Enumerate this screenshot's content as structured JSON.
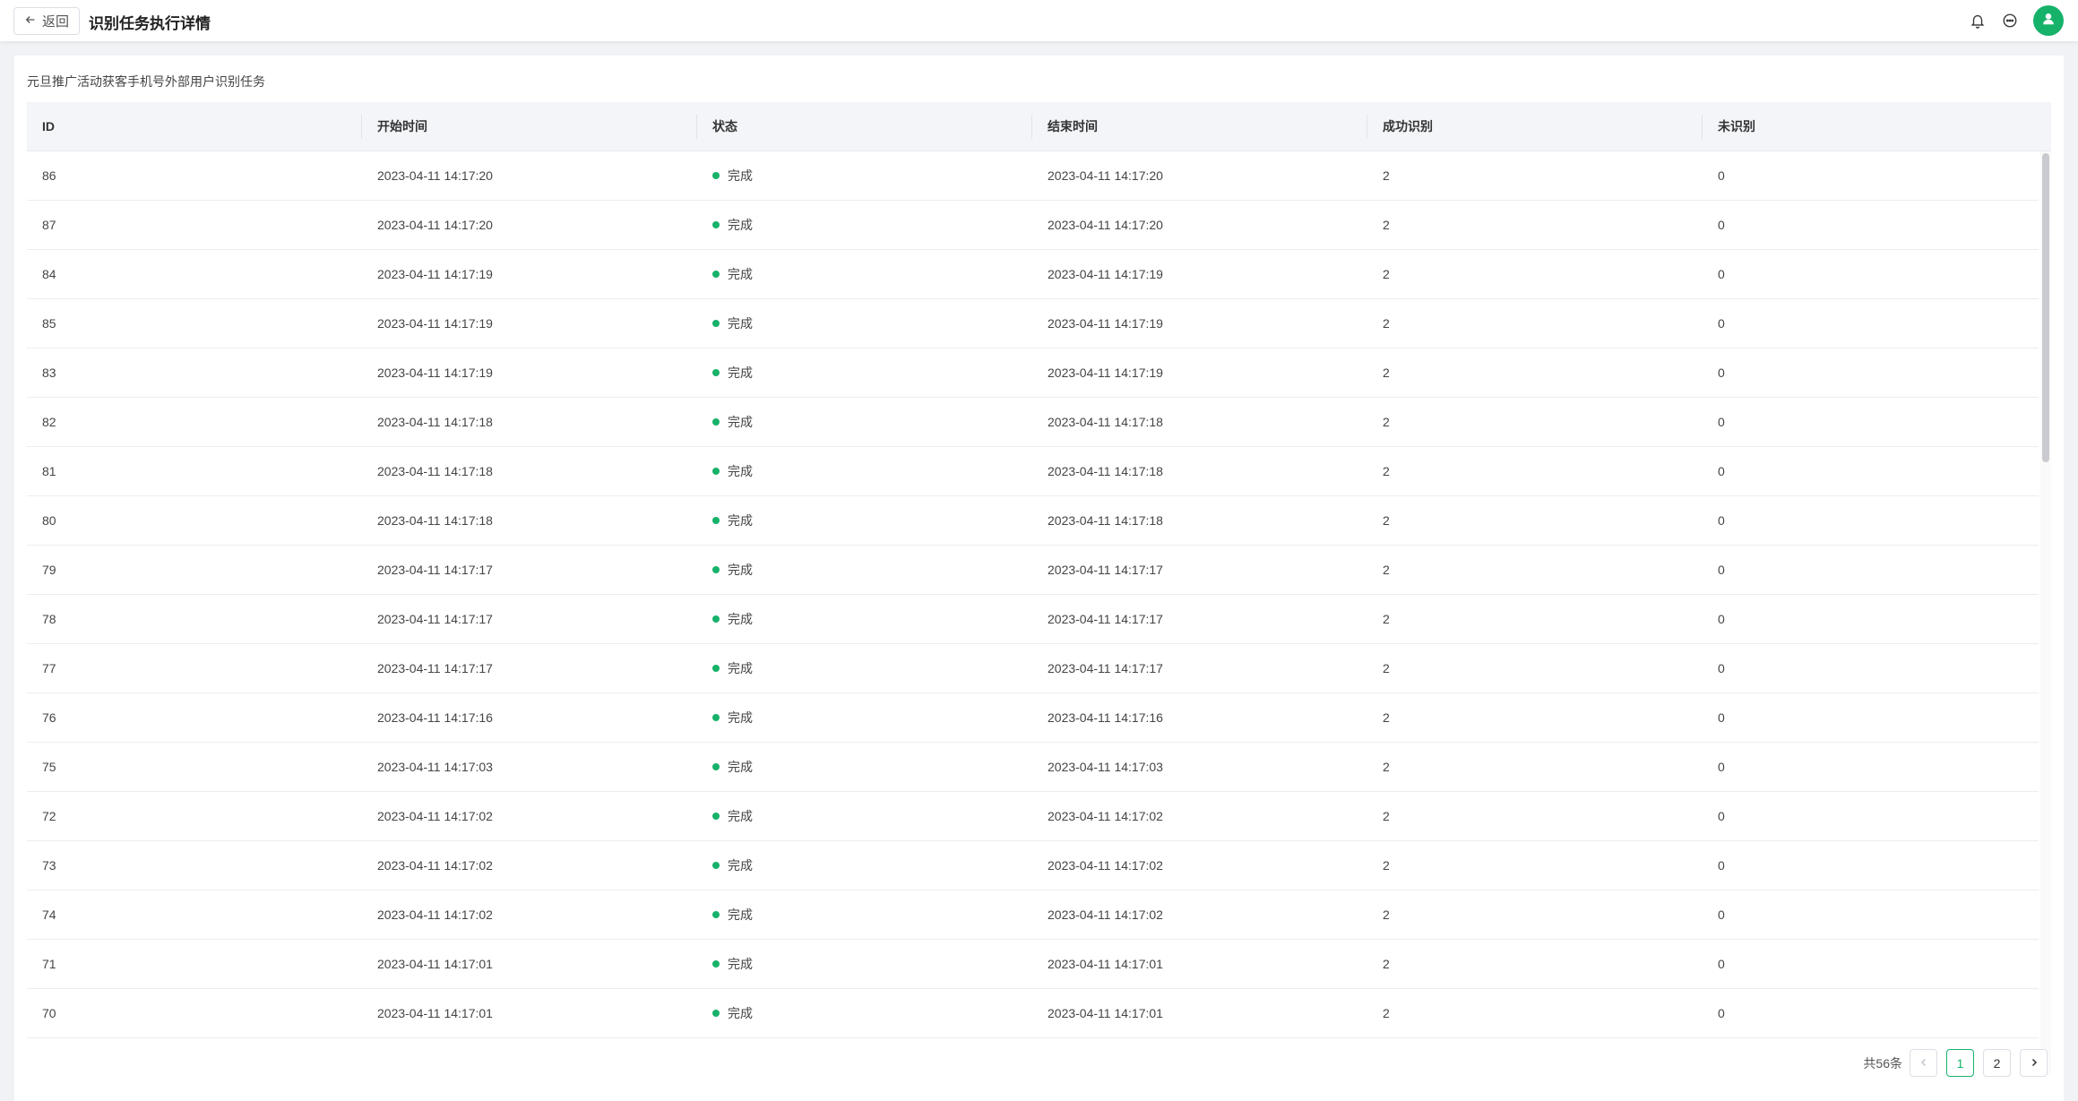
{
  "header": {
    "back_label": "返回",
    "title": "识别任务执行详情"
  },
  "colors": {
    "accent": "#17b26a",
    "status_done": "#17b26a"
  },
  "task": {
    "name": "元旦推广活动获客手机号外部用户识别任务"
  },
  "table": {
    "columns": [
      "ID",
      "开始时间",
      "状态",
      "结束时间",
      "成功识别",
      "未识别"
    ],
    "rows": [
      {
        "id": "86",
        "start": "2023-04-11 14:17:20",
        "status": "完成",
        "end": "2023-04-11 14:17:20",
        "success": "2",
        "unrecognized": "0"
      },
      {
        "id": "87",
        "start": "2023-04-11 14:17:20",
        "status": "完成",
        "end": "2023-04-11 14:17:20",
        "success": "2",
        "unrecognized": "0"
      },
      {
        "id": "84",
        "start": "2023-04-11 14:17:19",
        "status": "完成",
        "end": "2023-04-11 14:17:19",
        "success": "2",
        "unrecognized": "0"
      },
      {
        "id": "85",
        "start": "2023-04-11 14:17:19",
        "status": "完成",
        "end": "2023-04-11 14:17:19",
        "success": "2",
        "unrecognized": "0"
      },
      {
        "id": "83",
        "start": "2023-04-11 14:17:19",
        "status": "完成",
        "end": "2023-04-11 14:17:19",
        "success": "2",
        "unrecognized": "0"
      },
      {
        "id": "82",
        "start": "2023-04-11 14:17:18",
        "status": "完成",
        "end": "2023-04-11 14:17:18",
        "success": "2",
        "unrecognized": "0"
      },
      {
        "id": "81",
        "start": "2023-04-11 14:17:18",
        "status": "完成",
        "end": "2023-04-11 14:17:18",
        "success": "2",
        "unrecognized": "0"
      },
      {
        "id": "80",
        "start": "2023-04-11 14:17:18",
        "status": "完成",
        "end": "2023-04-11 14:17:18",
        "success": "2",
        "unrecognized": "0"
      },
      {
        "id": "79",
        "start": "2023-04-11 14:17:17",
        "status": "完成",
        "end": "2023-04-11 14:17:17",
        "success": "2",
        "unrecognized": "0"
      },
      {
        "id": "78",
        "start": "2023-04-11 14:17:17",
        "status": "完成",
        "end": "2023-04-11 14:17:17",
        "success": "2",
        "unrecognized": "0"
      },
      {
        "id": "77",
        "start": "2023-04-11 14:17:17",
        "status": "完成",
        "end": "2023-04-11 14:17:17",
        "success": "2",
        "unrecognized": "0"
      },
      {
        "id": "76",
        "start": "2023-04-11 14:17:16",
        "status": "完成",
        "end": "2023-04-11 14:17:16",
        "success": "2",
        "unrecognized": "0"
      },
      {
        "id": "75",
        "start": "2023-04-11 14:17:03",
        "status": "完成",
        "end": "2023-04-11 14:17:03",
        "success": "2",
        "unrecognized": "0"
      },
      {
        "id": "72",
        "start": "2023-04-11 14:17:02",
        "status": "完成",
        "end": "2023-04-11 14:17:02",
        "success": "2",
        "unrecognized": "0"
      },
      {
        "id": "73",
        "start": "2023-04-11 14:17:02",
        "status": "完成",
        "end": "2023-04-11 14:17:02",
        "success": "2",
        "unrecognized": "0"
      },
      {
        "id": "74",
        "start": "2023-04-11 14:17:02",
        "status": "完成",
        "end": "2023-04-11 14:17:02",
        "success": "2",
        "unrecognized": "0"
      },
      {
        "id": "71",
        "start": "2023-04-11 14:17:01",
        "status": "完成",
        "end": "2023-04-11 14:17:01",
        "success": "2",
        "unrecognized": "0"
      },
      {
        "id": "70",
        "start": "2023-04-11 14:17:01",
        "status": "完成",
        "end": "2023-04-11 14:17:01",
        "success": "2",
        "unrecognized": "0"
      }
    ]
  },
  "pagination": {
    "total_label": "共56条",
    "pages": [
      "1",
      "2"
    ],
    "current_page": "1"
  },
  "icons": {
    "back": "arrow-left-icon",
    "notifications": "bell-icon",
    "messages": "chat-icon",
    "user": "user-icon",
    "prev": "chevron-left-icon",
    "next": "chevron-right-icon"
  }
}
